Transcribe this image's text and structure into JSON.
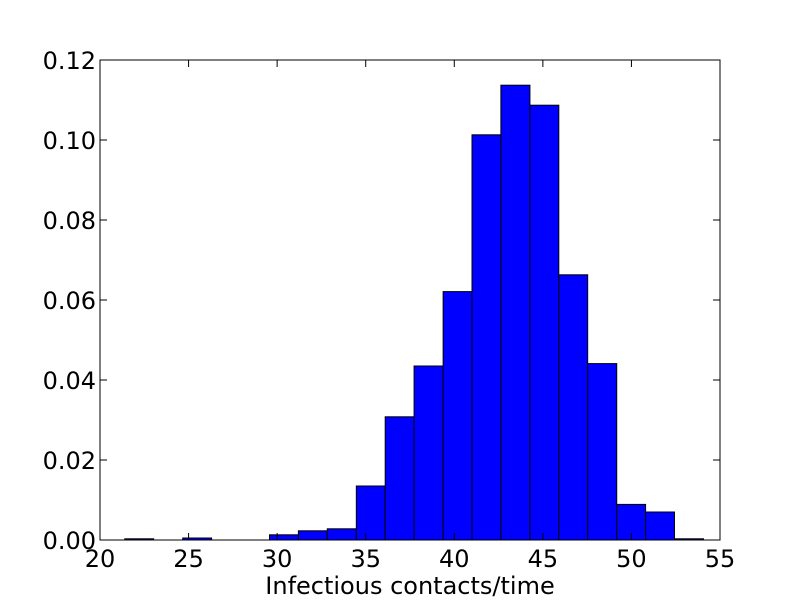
{
  "chart_data": {
    "type": "bar",
    "title": "",
    "xlabel": "Infectious contacts/time",
    "ylabel": "",
    "xlim": [
      20,
      55
    ],
    "ylim": [
      0.0,
      0.12
    ],
    "xticks": [
      "20",
      "25",
      "30",
      "35",
      "40",
      "45",
      "50",
      "55"
    ],
    "yticks": [
      "0.00",
      "0.02",
      "0.04",
      "0.06",
      "0.08",
      "0.10",
      "0.12"
    ],
    "bar_color": "#0000ff",
    "edge_color": "#000000",
    "grid": false,
    "bins": [
      {
        "x0": 21.4,
        "x1": 23.03,
        "value": 0.0003
      },
      {
        "x0": 23.03,
        "x1": 24.67,
        "value": 0.0
      },
      {
        "x0": 24.67,
        "x1": 26.3,
        "value": 0.0005
      },
      {
        "x0": 26.3,
        "x1": 27.93,
        "value": 0.0
      },
      {
        "x0": 27.93,
        "x1": 29.57,
        "value": 0.0
      },
      {
        "x0": 29.57,
        "x1": 31.2,
        "value": 0.0013
      },
      {
        "x0": 31.2,
        "x1": 32.83,
        "value": 0.0023
      },
      {
        "x0": 32.83,
        "x1": 34.47,
        "value": 0.0028
      },
      {
        "x0": 34.47,
        "x1": 36.1,
        "value": 0.0135
      },
      {
        "x0": 36.1,
        "x1": 37.73,
        "value": 0.0308
      },
      {
        "x0": 37.73,
        "x1": 39.37,
        "value": 0.0435
      },
      {
        "x0": 39.37,
        "x1": 41.0,
        "value": 0.0621
      },
      {
        "x0": 41.0,
        "x1": 42.63,
        "value": 0.1013
      },
      {
        "x0": 42.63,
        "x1": 44.27,
        "value": 0.1137
      },
      {
        "x0": 44.27,
        "x1": 45.9,
        "value": 0.1087
      },
      {
        "x0": 45.9,
        "x1": 47.53,
        "value": 0.0663
      },
      {
        "x0": 47.53,
        "x1": 49.17,
        "value": 0.0441
      },
      {
        "x0": 49.17,
        "x1": 50.8,
        "value": 0.0089
      },
      {
        "x0": 50.8,
        "x1": 52.43,
        "value": 0.007
      },
      {
        "x0": 52.43,
        "x1": 54.07,
        "value": 0.0003
      }
    ]
  }
}
